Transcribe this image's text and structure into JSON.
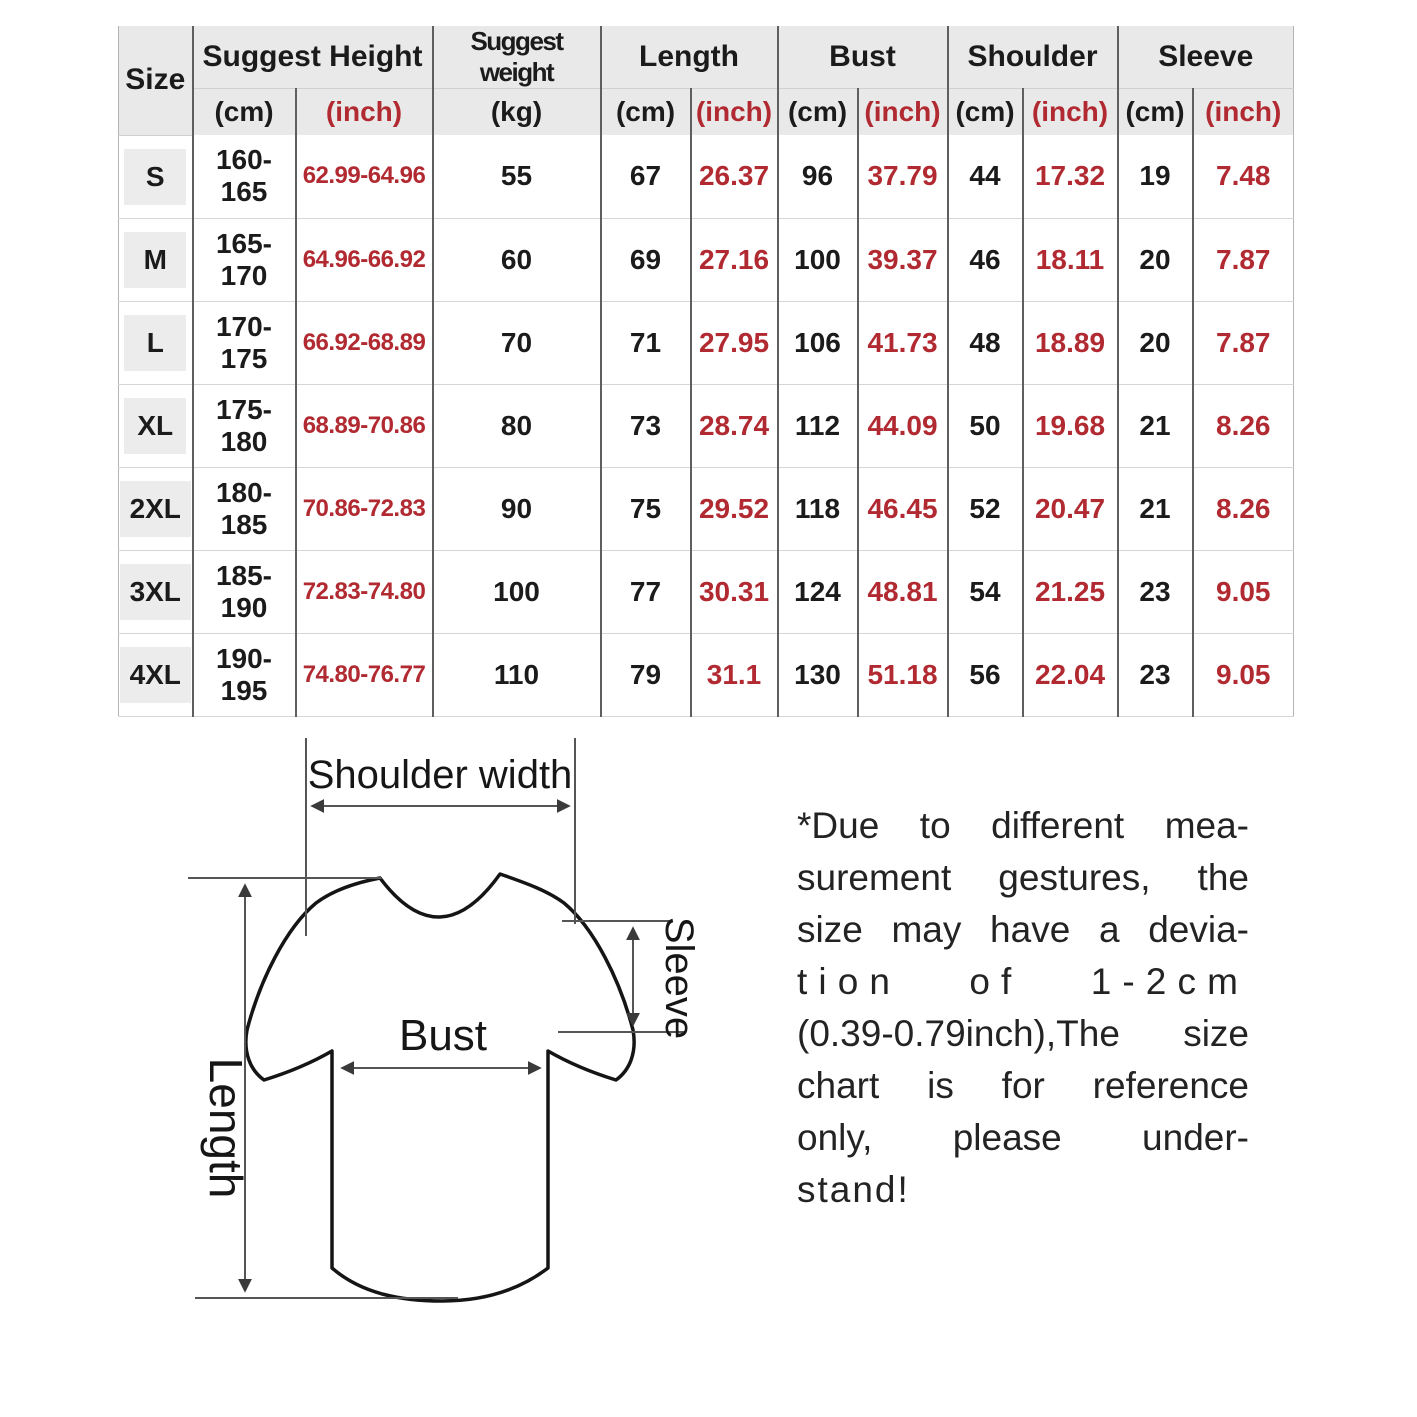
{
  "colors": {
    "accent_red": "#b22a31",
    "header_bg": "#e9e9e9",
    "size_chip_bg": "#ececec",
    "grid_dark": "#5f5f5f",
    "grid_light": "#d6d6d6"
  },
  "size_table": {
    "header_groups": [
      {
        "label": "Size"
      },
      {
        "label": "Suggest Height"
      },
      {
        "label": "Suggest weight"
      },
      {
        "label": "Length"
      },
      {
        "label": "Bust"
      },
      {
        "label": "Shoulder"
      },
      {
        "label": "Sleeve"
      }
    ],
    "unit_row": [
      {
        "label": "(cm)"
      },
      {
        "label": "(inch)"
      },
      {
        "label": "(kg)"
      },
      {
        "label": "(cm)"
      },
      {
        "label": "(inch)"
      },
      {
        "label": "(cm)"
      },
      {
        "label": "(inch)"
      },
      {
        "label": "(cm)"
      },
      {
        "label": "(inch)"
      },
      {
        "label": "(cm)"
      },
      {
        "label": "(inch)"
      }
    ],
    "red_columns": [
      2,
      5,
      7,
      9,
      11
    ],
    "rows": [
      [
        "S",
        "160-165",
        "62.99-64.96",
        "55",
        "67",
        "26.37",
        "96",
        "37.79",
        "44",
        "17.32",
        "19",
        "7.48"
      ],
      [
        "M",
        "165-170",
        "64.96-66.92",
        "60",
        "69",
        "27.16",
        "100",
        "39.37",
        "46",
        "18.11",
        "20",
        "7.87"
      ],
      [
        "L",
        "170-175",
        "66.92-68.89",
        "70",
        "71",
        "27.95",
        "106",
        "41.73",
        "48",
        "18.89",
        "20",
        "7.87"
      ],
      [
        "XL",
        "175-180",
        "68.89-70.86",
        "80",
        "73",
        "28.74",
        "112",
        "44.09",
        "50",
        "19.68",
        "21",
        "8.26"
      ],
      [
        "2XL",
        "180-185",
        "70.86-72.83",
        "90",
        "75",
        "29.52",
        "118",
        "46.45",
        "52",
        "20.47",
        "21",
        "8.26"
      ],
      [
        "3XL",
        "185-190",
        "72.83-74.80",
        "100",
        "77",
        "30.31",
        "124",
        "48.81",
        "54",
        "21.25",
        "23",
        "9.05"
      ],
      [
        "4XL",
        "190-195",
        "74.80-76.77",
        "110",
        "79",
        "31.1",
        "130",
        "51.18",
        "56",
        "22.04",
        "23",
        "9.05"
      ]
    ]
  },
  "diagram": {
    "shoulder_width": "Shoulder width",
    "bust": "Bust",
    "length": "Length",
    "sleeve": "Sleeve"
  },
  "disclaimer": {
    "lines": [
      "*Due to different mea-",
      "surement gestures, the",
      "size may have a devia-",
      "tion of 1-2cm",
      "(0.39-0.79inch),The size",
      "chart is for reference",
      "only, please under-",
      "stand!"
    ]
  }
}
